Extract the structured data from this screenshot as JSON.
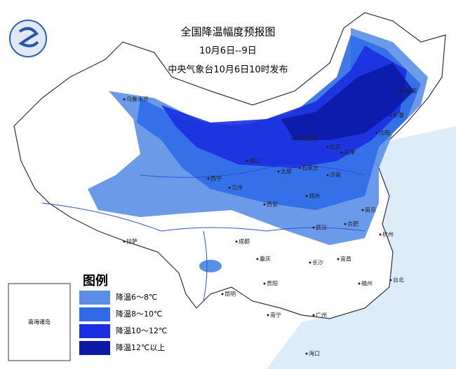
{
  "header": {
    "title": "全国降温幅度预报图",
    "period": "10月6日--9日",
    "issuer": "中央气象台10月6日10时发布"
  },
  "legend": {
    "title": "图例",
    "items": [
      {
        "label": "降温6～8℃",
        "color": "#5b8fe6"
      },
      {
        "label": "降温8～10℃",
        "color": "#2f6be8"
      },
      {
        "label": "降温10～12℃",
        "color": "#1a2fe0"
      },
      {
        "label": "降温12℃以上",
        "color": "#0d1aa8"
      }
    ]
  },
  "inset": {
    "label": "南海诸岛"
  },
  "cities": [
    "乌鲁木齐",
    "拉萨",
    "西宁",
    "兰州",
    "银川",
    "呼和浩特",
    "北京",
    "天津",
    "石家庄",
    "太原",
    "济南",
    "郑州",
    "西安",
    "成都",
    "重庆",
    "武汉",
    "合肥",
    "南京",
    "杭州",
    "长沙",
    "南昌",
    "贵阳",
    "昆明",
    "南宁",
    "广州",
    "福州",
    "台北",
    "哈尔滨",
    "长春",
    "沈阳",
    "海口"
  ]
}
